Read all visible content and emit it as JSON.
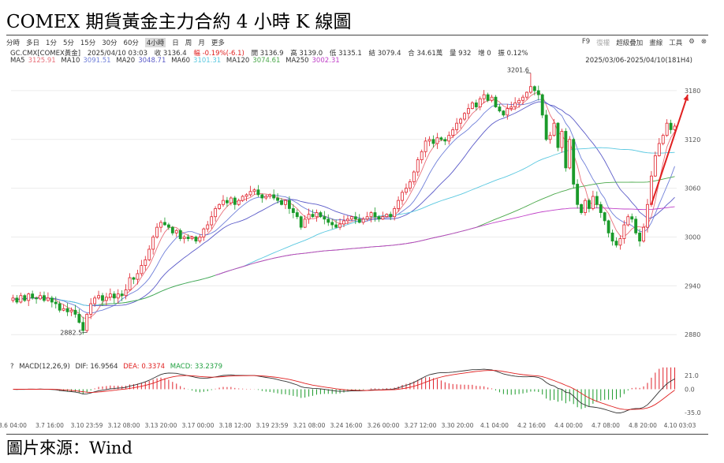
{
  "title": "COMEX 期貨黃金主力合約 4 小時 K 線圖",
  "source": "圖片來源：Wind",
  "toolbar": {
    "periods": [
      "分時",
      "多日",
      "1分",
      "5分",
      "15分",
      "30分",
      "60分",
      "4小時",
      "日",
      "周",
      "月",
      "更多"
    ],
    "active": "4小時",
    "right": [
      "F9",
      "復權",
      "超級疊加",
      "畫線",
      "工具"
    ]
  },
  "info": {
    "symbol": "GC.CMX[COMEX黃金]",
    "datetime": "2025/04/10 03:03",
    "close": "收 3136.4",
    "change": "幅 -0.19%(-6.1)",
    "open": "開 3136.9",
    "high": "高 3139.0",
    "low": "低 3135.1",
    "settle": "結 3079.4",
    "oi": "合 34.61萬",
    "volume": "量 932",
    "increase": "增 0",
    "amplitude": "振 0.12%"
  },
  "ma_legend": [
    {
      "label": "MA5",
      "value": "3125.91",
      "color": "#e8707a"
    },
    {
      "label": "MA10",
      "value": "3091.51",
      "color": "#6f7fd9"
    },
    {
      "label": "MA20",
      "value": "3048.71",
      "color": "#5a5ac8"
    },
    {
      "label": "MA60",
      "value": "3101.31",
      "color": "#5ac8e0"
    },
    {
      "label": "MA120",
      "value": "3074.61",
      "color": "#4aa84a"
    },
    {
      "label": "MA250",
      "value": "3002.31",
      "color": "#c040c8"
    }
  ],
  "date_range": "2025/03/06-2025/04/10(181H4)",
  "macd_legend": {
    "label": "MACD(12,26,9)",
    "dif": "DIF: 16.9564",
    "dea": "DEA: 0.3374",
    "macd": "MACD: 33.2379",
    "dif_color": "#333333",
    "dea_color": "#e02020",
    "macd_color": "#20a040"
  },
  "chart_data": [
    {
      "type": "candlestick",
      "title": "",
      "ylim": [
        2855,
        3210
      ],
      "yticks": [
        2880,
        2940,
        3000,
        3060,
        3120,
        3180
      ],
      "xticks": [
        "3.6 04:00",
        "3.7 16:00",
        "3.10 23:59",
        "3.12 08:00",
        "3.13 20:00",
        "3.17 00:00",
        "3.18 12:00",
        "3.19 23:59",
        "3.21 08:00",
        "3.24 16:00",
        "3.26 00:00",
        "3.27 12:00",
        "3.30 20:00",
        "4.1 04:00",
        "4.2 16:00",
        "4.4 00:00",
        "4.7 08:00",
        "4.8 20:00",
        "4.10 03:03"
      ],
      "annotations": [
        {
          "label": "3201.6",
          "value": 3201.6
        },
        {
          "label": "2882.5",
          "value": 2882.5
        }
      ],
      "close": [
        2925,
        2920,
        2928,
        2922,
        2930,
        2925,
        2924,
        2928,
        2922,
        2925,
        2920,
        2918,
        2910,
        2912,
        2908,
        2910,
        2905,
        2895,
        2885,
        2905,
        2918,
        2925,
        2928,
        2922,
        2926,
        2930,
        2925,
        2930,
        2928,
        2935,
        2950,
        2948,
        2955,
        2965,
        2972,
        2985,
        3000,
        3012,
        3018,
        3015,
        3012,
        3005,
        3008,
        2998,
        3000,
        2998,
        3000,
        2995,
        3000,
        3010,
        3015,
        3025,
        3035,
        3040,
        3045,
        3042,
        3048,
        3040,
        3045,
        3050,
        3052,
        3056,
        3058,
        3052,
        3048,
        3050,
        3052,
        3048,
        3045,
        3040,
        3045,
        3035,
        3030,
        3025,
        3012,
        3022,
        3028,
        3025,
        3030,
        3025,
        3022,
        3018,
        3015,
        3012,
        3016,
        3020,
        3022,
        3025,
        3022,
        3018,
        3022,
        3025,
        3030,
        3025,
        3022,
        3025,
        3028,
        3025,
        3035,
        3045,
        3055,
        3060,
        3068,
        3080,
        3095,
        3105,
        3118,
        3120,
        3115,
        3122,
        3120,
        3118,
        3125,
        3132,
        3140,
        3145,
        3152,
        3158,
        3165,
        3160,
        3170,
        3175,
        3168,
        3172,
        3160,
        3155,
        3150,
        3158,
        3160,
        3165,
        3168,
        3172,
        3178,
        3185,
        3180,
        3175,
        3150,
        3120,
        3125,
        3140,
        3110,
        3130,
        3085,
        3120,
        3065,
        3040,
        3030,
        3045,
        3035,
        3050,
        3040,
        3030,
        3020,
        3005,
        2995,
        2990,
        2998,
        3015,
        3025,
        3022,
        3005,
        2995,
        3012,
        3040,
        3075,
        3100,
        3115,
        3125,
        3140,
        3132,
        3136.4
      ]
    },
    {
      "type": "bar",
      "title": "MACD(12,26,9)",
      "ylim": [
        -40,
        28
      ],
      "yticks": [
        21.0,
        0.0,
        -35.0
      ],
      "macd_hist_peak": 33.2379
    }
  ]
}
